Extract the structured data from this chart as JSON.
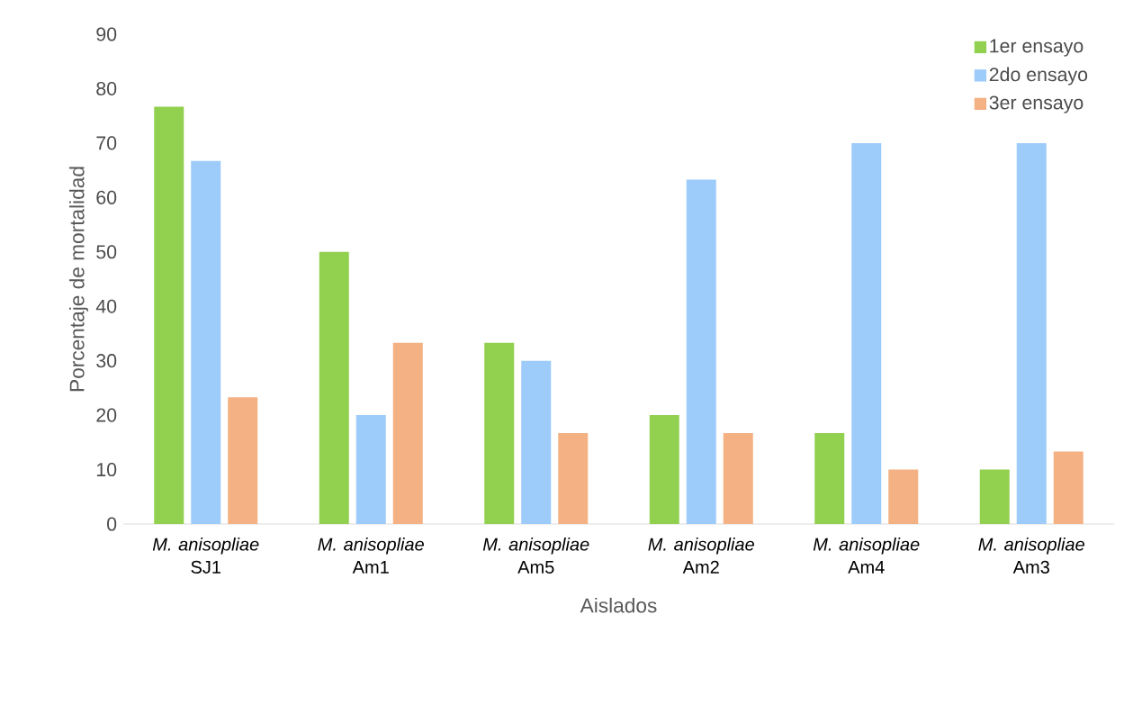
{
  "chart_data": {
    "type": "bar",
    "xlabel": "Aislados",
    "ylabel": "Porcentaje de mortalidad",
    "categories": [
      "*M. anisopliae* SJ1",
      "*M. anisopliae* Am1",
      "*M. anisopliae* Am5",
      "*M. anisopliae* Am2",
      "*M. anisopliae* Am4",
      "*M. anisopliae* Am3"
    ],
    "series": [
      {
        "name": "1er ensayo",
        "color": "#92d050",
        "values": [
          76.7,
          50,
          33.3,
          20,
          16.7,
          10
        ]
      },
      {
        "name": "2do ensayo",
        "color": "#9dcbfa",
        "values": [
          66.7,
          20,
          30,
          63.3,
          70,
          70
        ]
      },
      {
        "name": "3er ensayo",
        "color": "#f4b183",
        "values": [
          23.3,
          33.3,
          16.7,
          16.7,
          10,
          13.3
        ]
      }
    ],
    "ylim": [
      0,
      90
    ],
    "yticks": [
      0,
      10,
      20,
      30,
      40,
      50,
      60,
      70,
      80,
      90
    ],
    "grid": false,
    "legend": "top right"
  }
}
